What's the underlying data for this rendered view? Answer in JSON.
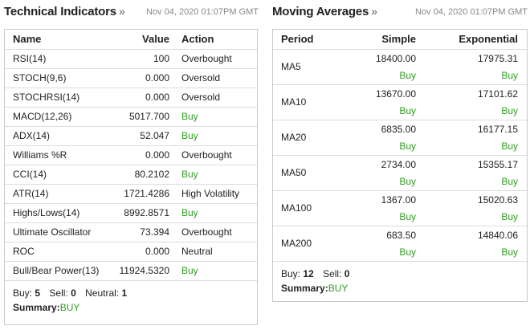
{
  "technical": {
    "title": "Technical Indicators",
    "arrow": "»",
    "timestamp": "Nov 04, 2020 01:07PM GMT",
    "columns": {
      "name": "Name",
      "value": "Value",
      "action": "Action"
    },
    "rows": [
      {
        "name": "RSI(14)",
        "value": "100",
        "action": "Overbought",
        "action_color": "#222222"
      },
      {
        "name": "STOCH(9,6)",
        "value": "0.000",
        "action": "Oversold",
        "action_color": "#222222"
      },
      {
        "name": "STOCHRSI(14)",
        "value": "0.000",
        "action": "Oversold",
        "action_color": "#222222"
      },
      {
        "name": "MACD(12,26)",
        "value": "5017.700",
        "action": "Buy",
        "action_color": "#2e9e1e"
      },
      {
        "name": "ADX(14)",
        "value": "52.047",
        "action": "Buy",
        "action_color": "#2e9e1e"
      },
      {
        "name": "Williams %R",
        "value": "0.000",
        "action": "Overbought",
        "action_color": "#222222"
      },
      {
        "name": "CCI(14)",
        "value": "80.2102",
        "action": "Buy",
        "action_color": "#2e9e1e"
      },
      {
        "name": "ATR(14)",
        "value": "1721.4286",
        "action": "High Volatility",
        "action_color": "#222222"
      },
      {
        "name": "Highs/Lows(14)",
        "value": "8992.8571",
        "action": "Buy",
        "action_color": "#2e9e1e"
      },
      {
        "name": "Ultimate Oscillator",
        "value": "73.394",
        "action": "Overbought",
        "action_color": "#222222"
      },
      {
        "name": "ROC",
        "value": "0.000",
        "action": "Neutral",
        "action_color": "#222222"
      },
      {
        "name": "Bull/Bear Power(13)",
        "value": "11924.5320",
        "action": "Buy",
        "action_color": "#2e9e1e"
      }
    ],
    "footer": {
      "buy_label": "Buy:",
      "buy_count": "5",
      "sell_label": "Sell:",
      "sell_count": "0",
      "neutral_label": "Neutral:",
      "neutral_count": "1",
      "summary_label": "Summary:",
      "summary_value": "BUY"
    }
  },
  "moving_averages": {
    "title": "Moving Averages",
    "arrow": "»",
    "timestamp": "Nov 04, 2020 01:07PM GMT",
    "columns": {
      "period": "Period",
      "simple": "Simple",
      "exponential": "Exponential"
    },
    "rows": [
      {
        "period": "MA5",
        "simple_value": "18400.00",
        "simple_action": "Buy",
        "exp_value": "17975.31",
        "exp_action": "Buy"
      },
      {
        "period": "MA10",
        "simple_value": "13670.00",
        "simple_action": "Buy",
        "exp_value": "17101.62",
        "exp_action": "Buy"
      },
      {
        "period": "MA20",
        "simple_value": "6835.00",
        "simple_action": "Buy",
        "exp_value": "16177.15",
        "exp_action": "Buy"
      },
      {
        "period": "MA50",
        "simple_value": "2734.00",
        "simple_action": "Buy",
        "exp_value": "15355.17",
        "exp_action": "Buy"
      },
      {
        "period": "MA100",
        "simple_value": "1367.00",
        "simple_action": "Buy",
        "exp_value": "15020.63",
        "exp_action": "Buy"
      },
      {
        "period": "MA200",
        "simple_value": "683.50",
        "simple_action": "Buy",
        "exp_value": "14840.06",
        "exp_action": "Buy"
      }
    ],
    "footer": {
      "buy_label": "Buy:",
      "buy_count": "12",
      "sell_label": "Sell:",
      "sell_count": "0",
      "summary_label": "Summary:",
      "summary_value": "BUY"
    }
  },
  "colors": {
    "buy": "#2e9e1e",
    "border": "#c9c9c9",
    "row_divider": "#dcdcdc",
    "timestamp": "#888888"
  }
}
